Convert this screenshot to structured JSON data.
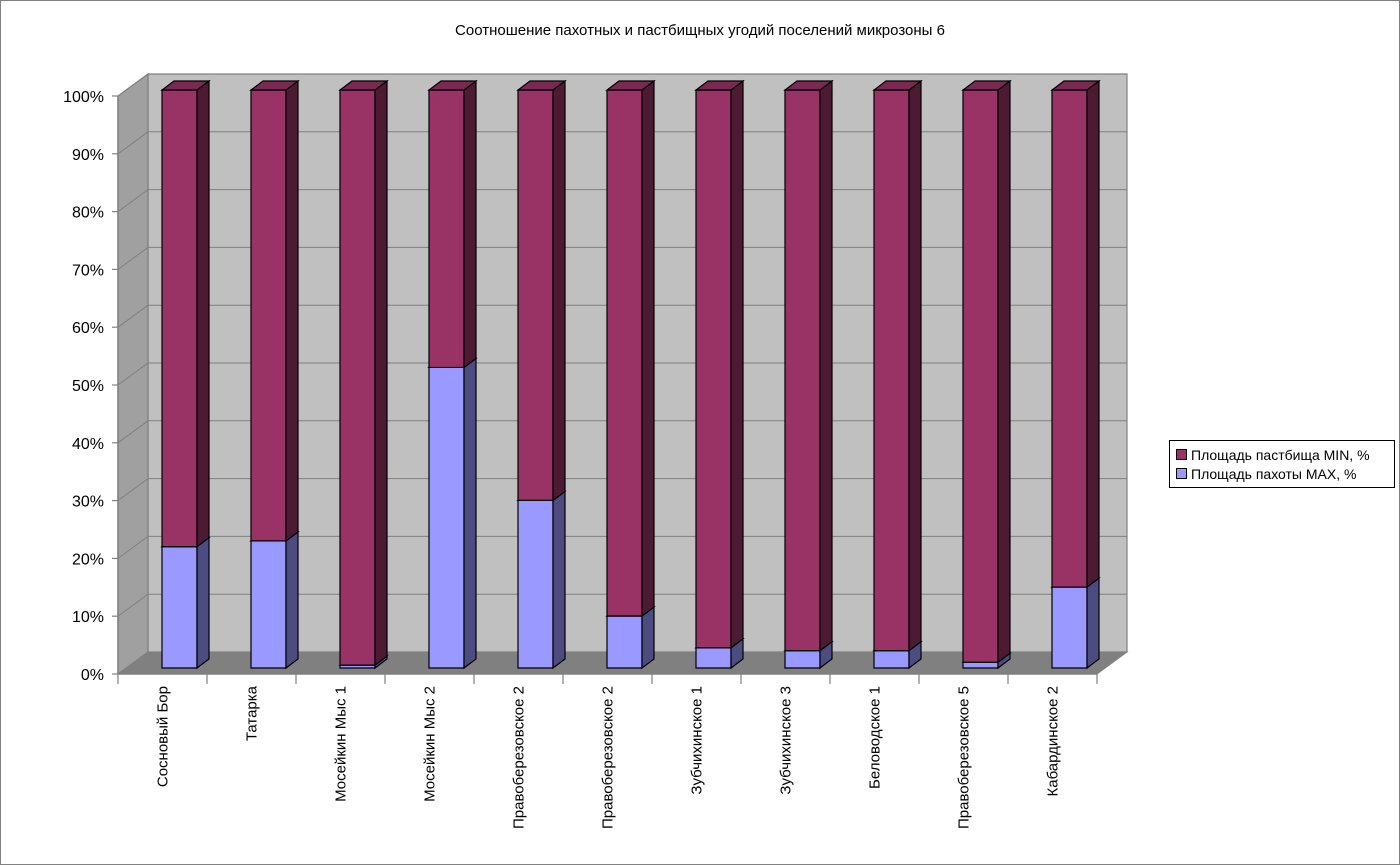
{
  "chart_data": {
    "type": "bar",
    "stacked": true,
    "percent_stacked": true,
    "three_d": true,
    "title": "Соотношение пахотных и пастбищных угодий поселений микрозоны 6",
    "categories": [
      "Сосновый Бор",
      "Татарка",
      "Мосейкин Мыс 1",
      "Мосейкин Мыс 2",
      "Правоберезовское 2",
      "Правоберезовское 2",
      "Зубчихинское 1",
      "Зубчихинское 3",
      "Беловодское 1",
      "Правоберезовское 5",
      "Кабардинское 2"
    ],
    "series": [
      {
        "name": "Площадь пахоты MAX, %",
        "color": "#9999ff",
        "side_color": "#4c4c80",
        "top_color": "#7a7acc",
        "values": [
          21,
          22,
          0.5,
          52,
          29,
          9,
          3.5,
          3,
          3,
          1,
          14
        ]
      },
      {
        "name": "Площадь пастбища MIN, %",
        "color": "#993366",
        "side_color": "#4d1a33",
        "top_color": "#7a2952",
        "values": [
          79,
          78,
          99.5,
          48,
          71,
          91,
          96.5,
          97,
          97,
          99,
          86
        ]
      }
    ],
    "ytick_labels": [
      "0%",
      "10%",
      "20%",
      "30%",
      "40%",
      "50%",
      "60%",
      "70%",
      "80%",
      "90%",
      "100%"
    ],
    "ylim": [
      0,
      100
    ],
    "grid": true,
    "legend_position": "right",
    "colors": {
      "wall": "#c0c0c0",
      "floor": "#808080",
      "side_wall": "#a0a0a0",
      "gridline": "#808080"
    }
  }
}
